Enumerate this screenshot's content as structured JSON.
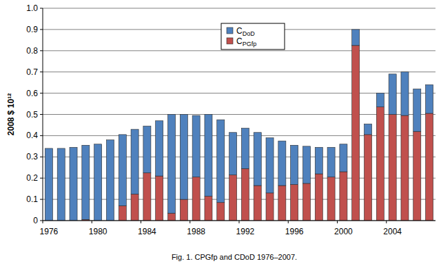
{
  "chart_data": {
    "type": "bar",
    "stacked": true,
    "title": "Fig. 1. CPGfp and CDoD 1976–2007.",
    "y_label": "2008 $ 10¹²",
    "categories": [
      "1976",
      null,
      null,
      null,
      "1980",
      null,
      null,
      null,
      "1984",
      null,
      null,
      null,
      "1988",
      null,
      null,
      null,
      "1992",
      null,
      null,
      null,
      "1996",
      null,
      null,
      null,
      "2000",
      null,
      null,
      null,
      "2004",
      null,
      null,
      null
    ],
    "series": [
      {
        "name": "CPGfp",
        "color": "#c0504d",
        "values": [
          0,
          0,
          0,
          0.005,
          0,
          0,
          0.07,
          0.125,
          0.225,
          0.21,
          0.035,
          0.1,
          0.205,
          0.115,
          0.085,
          0.215,
          0.245,
          0.165,
          0.13,
          0.165,
          0.17,
          0.175,
          0.22,
          0.205,
          0.23,
          0.825,
          0.405,
          0.535,
          0.5,
          0.495,
          0.42,
          0.505
        ]
      },
      {
        "name": "CDoD",
        "color": "#4f81bd",
        "values": [
          0.34,
          0.34,
          0.345,
          0.35,
          0.36,
          0.38,
          0.335,
          0.305,
          0.22,
          0.26,
          0.465,
          0.4,
          0.29,
          0.385,
          0.39,
          0.2,
          0.19,
          0.25,
          0.26,
          0.21,
          0.185,
          0.175,
          0.125,
          0.14,
          0.13,
          0.075,
          0.05,
          0.065,
          0.19,
          0.205,
          0.2,
          0.135
        ]
      }
    ],
    "ylim": [
      0,
      1
    ],
    "yticks": [
      0,
      0.1,
      0.2,
      0.3,
      0.4,
      0.5,
      0.6,
      0.7,
      0.8,
      0.9,
      {
        "value": 1,
        "label": "1.0"
      }
    ],
    "grid": true,
    "legend": "top"
  }
}
